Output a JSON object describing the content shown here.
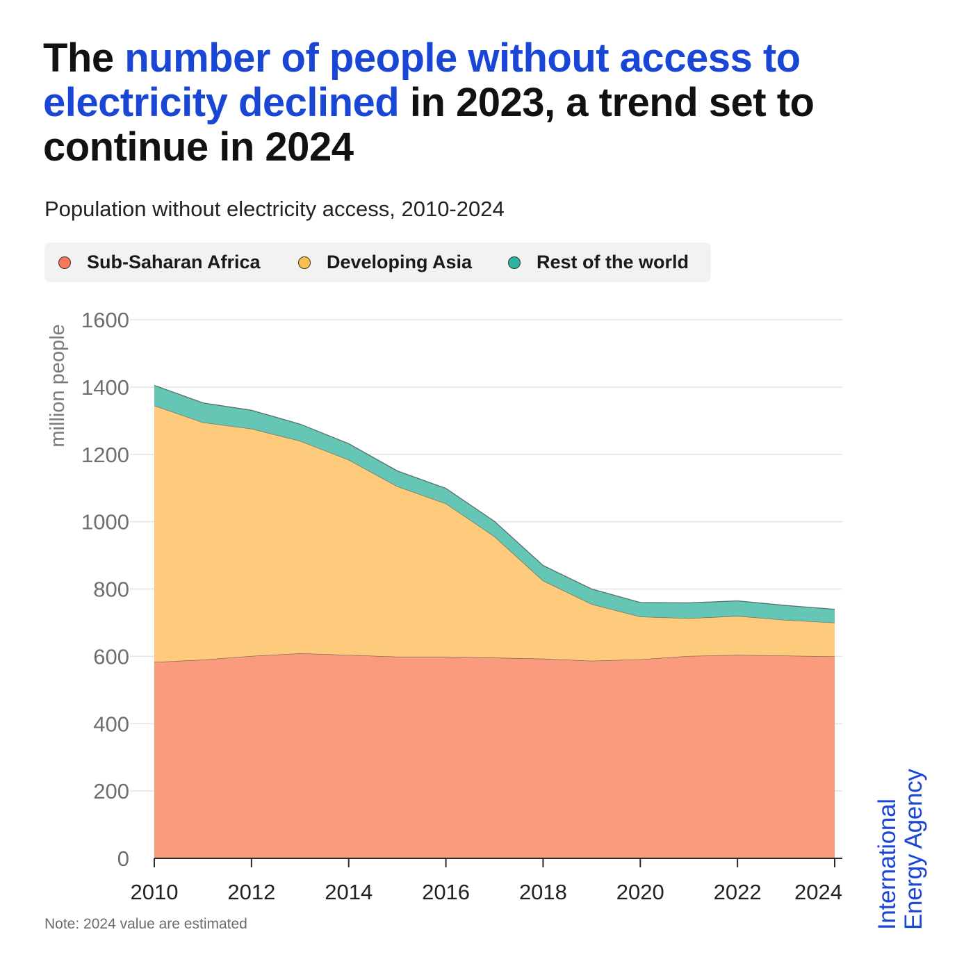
{
  "headline": {
    "part1": "The ",
    "highlight": "number of people without access to electricity declined",
    "part2": " in 2023, a trend set to continue in 2024"
  },
  "subtitle": "Population without electricity access, 2010-2024",
  "legend": [
    {
      "label": "Sub-Saharan Africa",
      "color": "#f7775a"
    },
    {
      "label": "Developing Asia",
      "color": "#fbbf4f"
    },
    {
      "label": "Rest of the world",
      "color": "#2bb5a0"
    }
  ],
  "note": "Note: 2024 value are estimated",
  "logo": {
    "line1": "International",
    "line2": "Energy Agency"
  },
  "colors": {
    "highlight": "#1a46d6",
    "ssa_fill": "#fa9b7e",
    "asia_fill": "#fdcb7b",
    "row_fill": "#66c6b6",
    "grid": "#e4e4e4"
  },
  "chart_data": {
    "type": "area",
    "stacked": true,
    "title": "Population without electricity access, 2010-2024",
    "ylabel": "million people",
    "xlabel": "",
    "ylim": [
      0,
      1600
    ],
    "yticks": [
      0,
      200,
      400,
      600,
      800,
      1000,
      1200,
      1400,
      1600
    ],
    "xticks": [
      2010,
      2012,
      2014,
      2016,
      2018,
      2020,
      2022,
      2024
    ],
    "x": [
      2010,
      2011,
      2012,
      2013,
      2014,
      2015,
      2016,
      2017,
      2018,
      2019,
      2020,
      2021,
      2022,
      2023,
      2024
    ],
    "series": [
      {
        "name": "Sub-Saharan Africa",
        "values": [
          583,
          590,
          601,
          609,
          604,
          599,
          599,
          596,
          593,
          587,
          591,
          601,
          604,
          602,
          600
        ]
      },
      {
        "name": "Developing Asia",
        "values": [
          762,
          705,
          675,
          631,
          580,
          506,
          455,
          360,
          232,
          168,
          127,
          112,
          116,
          106,
          100
        ]
      },
      {
        "name": "Rest of the world",
        "values": [
          60,
          58,
          55,
          50,
          48,
          46,
          45,
          45,
          45,
          45,
          42,
          46,
          45,
          43,
          40
        ]
      }
    ],
    "note": "Note: 2024 value are estimated"
  }
}
